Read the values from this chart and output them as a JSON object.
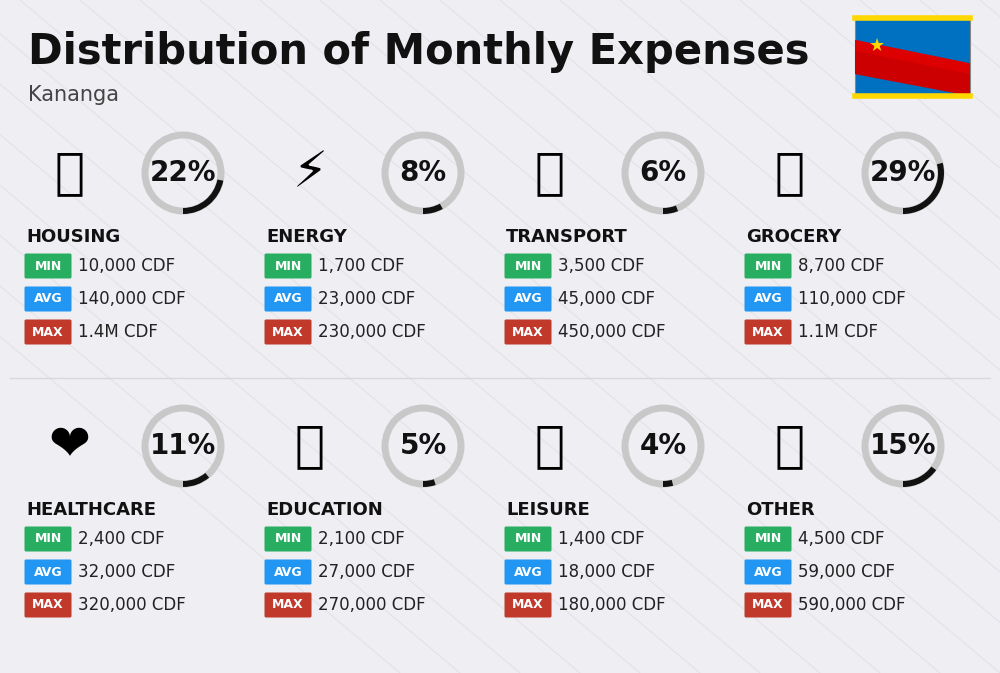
{
  "title": "Distribution of Monthly Expenses",
  "subtitle": "Kananga",
  "background_color": "#eeeef3",
  "categories": [
    {
      "name": "HOUSING",
      "percent": 22,
      "icon": "🏙",
      "min": "10,000 CDF",
      "avg": "140,000 CDF",
      "max": "1.4M CDF",
      "row": 0,
      "col": 0
    },
    {
      "name": "ENERGY",
      "percent": 8,
      "icon": "⚡",
      "min": "1,700 CDF",
      "avg": "23,000 CDF",
      "max": "230,000 CDF",
      "row": 0,
      "col": 1
    },
    {
      "name": "TRANSPORT",
      "percent": 6,
      "icon": "🚌",
      "min": "3,500 CDF",
      "avg": "45,000 CDF",
      "max": "450,000 CDF",
      "row": 0,
      "col": 2
    },
    {
      "name": "GROCERY",
      "percent": 29,
      "icon": "🛒",
      "min": "8,700 CDF",
      "avg": "110,000 CDF",
      "max": "1.1M CDF",
      "row": 0,
      "col": 3
    },
    {
      "name": "HEALTHCARE",
      "percent": 11,
      "icon": "❤️",
      "min": "2,400 CDF",
      "avg": "32,000 CDF",
      "max": "320,000 CDF",
      "row": 1,
      "col": 0
    },
    {
      "name": "EDUCATION",
      "percent": 5,
      "icon": "🎓",
      "min": "2,100 CDF",
      "avg": "27,000 CDF",
      "max": "270,000 CDF",
      "row": 1,
      "col": 1
    },
    {
      "name": "LEISURE",
      "percent": 4,
      "icon": "🛍️",
      "min": "1,400 CDF",
      "avg": "18,000 CDF",
      "max": "180,000 CDF",
      "row": 1,
      "col": 2
    },
    {
      "name": "OTHER",
      "percent": 15,
      "icon": "💰",
      "min": "4,500 CDF",
      "avg": "59,000 CDF",
      "max": "590,000 CDF",
      "row": 1,
      "col": 3
    }
  ],
  "color_min": "#27ae60",
  "color_avg": "#2196f3",
  "color_max": "#c0392b",
  "arc_color_filled": "#111111",
  "arc_color_empty": "#c8c8c8",
  "title_fontsize": 30,
  "subtitle_fontsize": 15,
  "category_fontsize": 13,
  "value_fontsize": 12,
  "percent_fontsize": 20,
  "badge_fontsize": 9
}
